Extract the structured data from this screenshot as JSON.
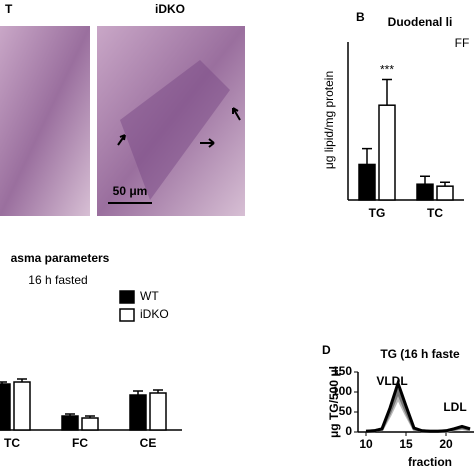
{
  "histology": {
    "left_label": "T",
    "right_label": "iDKO",
    "scale_bar": "50 μm"
  },
  "chart_data": [
    {
      "type": "bar",
      "panel": "B",
      "title": "Duodenal li",
      "subtitle": "FF",
      "ylabel": "μg lipid/mg protein",
      "categories": [
        "TG",
        "TC"
      ],
      "series": [
        {
          "color": "#000000",
          "values": [
            18,
            8
          ],
          "errors": [
            8,
            4
          ]
        },
        {
          "color": "#ffffff",
          "values": [
            48,
            7
          ],
          "errors": [
            13,
            2
          ]
        }
      ],
      "annotations": [
        {
          "text": "***",
          "series": 1,
          "category": 0
        }
      ],
      "ylim": [
        0,
        80
      ]
    },
    {
      "type": "bar",
      "title": "asma parameters",
      "subtitle": "16 h fasted",
      "categories": [
        "TC",
        "FC",
        "CE"
      ],
      "series": [
        {
          "name": "WT",
          "color": "#000000",
          "values": [
            46,
            14,
            35
          ],
          "errors": [
            2,
            2,
            4
          ]
        },
        {
          "name": "iDKO",
          "color": "#ffffff",
          "values": [
            48,
            12,
            37
          ],
          "errors": [
            3,
            2,
            3
          ]
        }
      ],
      "ylim": [
        0,
        100
      ]
    },
    {
      "type": "line",
      "panel": "D",
      "title": "TG (16 h faste",
      "ylabel": "μg TG/500 μl",
      "xlabel": "fraction",
      "x": [
        10,
        11,
        12,
        13,
        14,
        15,
        16,
        17,
        18,
        19,
        20,
        21,
        22,
        23
      ],
      "series": [
        {
          "color": "#000000",
          "values": [
            2,
            3,
            8,
            60,
            122,
            65,
            10,
            3,
            2,
            2,
            3,
            8,
            14,
            8
          ]
        },
        {
          "color": "#777777",
          "values": [
            2,
            3,
            7,
            50,
            100,
            52,
            8,
            3,
            2,
            2,
            3,
            7,
            11,
            6
          ]
        },
        {
          "color": "#bbbbbb",
          "values": [
            2,
            3,
            6,
            42,
            85,
            44,
            7,
            3,
            2,
            2,
            2,
            6,
            9,
            5
          ]
        }
      ],
      "annotations": [
        "VLDL",
        "LDL"
      ],
      "xlim": [
        9,
        23.5
      ],
      "xticks": [
        10,
        15,
        20
      ],
      "ylim": [
        0,
        150
      ],
      "yticks": [
        0,
        50,
        100,
        150
      ]
    }
  ]
}
